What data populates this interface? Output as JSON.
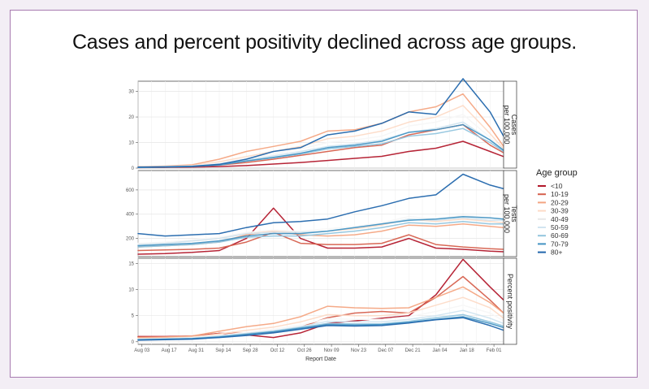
{
  "slide": {
    "title": "Cases and percent positivity declined across age groups."
  },
  "chart_data": {
    "type": "line",
    "xlabel": "Report Date",
    "x_ticks": [
      "Aug 03",
      "Aug 17",
      "Aug 31",
      "Sep 14",
      "Sep 28",
      "Oct 12",
      "Oct 26",
      "Nov 09",
      "Nov 23",
      "Dec 07",
      "Dec 21",
      "Jan 04",
      "Jan 18",
      "Feb 01"
    ],
    "x_dates": [
      "2020-08-01",
      "2020-08-15",
      "2020-08-29",
      "2020-09-12",
      "2020-09-26",
      "2020-10-10",
      "2020-10-24",
      "2020-11-07",
      "2020-11-21",
      "2020-12-05",
      "2020-12-19",
      "2021-01-02",
      "2021-01-16",
      "2021-01-30",
      "2021-02-06"
    ],
    "legend": {
      "title": "Age group",
      "position": "right",
      "entries": [
        "<10",
        "10-19",
        "20-29",
        "30-39",
        "40-49",
        "50-59",
        "60-69",
        "70-79",
        "80+"
      ]
    },
    "colors": [
      "#b2182b",
      "#d6604d",
      "#f4a582",
      "#fddbc7",
      "#f7f7f7",
      "#d1e5f0",
      "#92c5de",
      "#4393c3",
      "#2166ac"
    ],
    "panels": [
      {
        "strip_label_lines": [
          "Cases",
          "per 100,000"
        ],
        "ylim": [
          0,
          34
        ],
        "y_ticks": [
          0,
          10,
          20,
          30
        ],
        "series": [
          {
            "name": "<10",
            "values": [
              0.2,
              0.3,
              0.4,
              0.6,
              1.0,
              1.6,
              2.2,
              3.0,
              3.8,
              4.6,
              6.5,
              7.8,
              10.5,
              6.5,
              4.5
            ]
          },
          {
            "name": "10-19",
            "values": [
              0.4,
              0.6,
              0.8,
              1.2,
              2.2,
              3.5,
              5.0,
              6.5,
              8.0,
              9.0,
              13.0,
              15.0,
              17.0,
              9.0,
              6.0
            ]
          },
          {
            "name": "20-29",
            "values": [
              0.5,
              0.8,
              1.3,
              3.5,
              6.5,
              8.5,
              10.5,
              14.5,
              15.0,
              17.5,
              22.0,
              24.0,
              29.0,
              16.0,
              8.5
            ]
          },
          {
            "name": "30-39",
            "values": [
              0.4,
              0.7,
              1.0,
              2.5,
              4.5,
              6.5,
              8.5,
              11.5,
              12.5,
              14.5,
              18.0,
              20.0,
              24.5,
              13.5,
              7.5
            ]
          },
          {
            "name": "40-49",
            "values": [
              0.4,
              0.6,
              0.9,
              2.0,
              3.8,
              5.5,
              7.5,
              10.0,
              11.0,
              12.5,
              16.5,
              18.0,
              21.0,
              12.0,
              7.0
            ]
          },
          {
            "name": "50-59",
            "values": [
              0.3,
              0.5,
              0.8,
              1.6,
              3.2,
              4.8,
              6.5,
              8.5,
              9.5,
              11.0,
              14.0,
              15.5,
              18.0,
              11.0,
              6.5
            ]
          },
          {
            "name": "60-69",
            "values": [
              0.3,
              0.4,
              0.7,
              1.3,
              2.8,
              4.0,
              5.5,
              7.5,
              8.5,
              9.5,
              12.5,
              13.5,
              15.5,
              10.0,
              6.5
            ]
          },
          {
            "name": "70-79",
            "values": [
              0.3,
              0.4,
              0.6,
              1.2,
              2.8,
              4.2,
              5.8,
              8.0,
              9.0,
              10.5,
              14.0,
              15.0,
              17.0,
              11.0,
              7.0
            ]
          },
          {
            "name": "80+",
            "values": [
              0.4,
              0.5,
              0.7,
              1.5,
              3.5,
              6.5,
              8.0,
              13.0,
              14.5,
              17.5,
              22.0,
              21.0,
              35.0,
              22.0,
              12.5
            ]
          }
        ]
      },
      {
        "strip_label_lines": [
          "Tests",
          "per 100,000"
        ],
        "ylim": [
          50,
          760
        ],
        "y_ticks": [
          200,
          400,
          600
        ],
        "series": [
          {
            "name": "<10",
            "values": [
              70,
              75,
              85,
              100,
              200,
              450,
              200,
              120,
              120,
              130,
              200,
              120,
              110,
              95,
              90
            ]
          },
          {
            "name": "10-19",
            "values": [
              100,
              105,
              110,
              120,
              170,
              250,
              160,
              150,
              150,
              160,
              230,
              150,
              130,
              115,
              110
            ]
          },
          {
            "name": "20-29",
            "values": [
              130,
              140,
              150,
              170,
              230,
              260,
              230,
              220,
              230,
              260,
              310,
              300,
              320,
              300,
              290
            ]
          },
          {
            "name": "30-39",
            "values": [
              150,
              160,
              180,
              200,
              240,
              260,
              250,
              260,
              280,
              310,
              360,
              340,
              360,
              340,
              330
            ]
          },
          {
            "name": "40-49",
            "values": [
              160,
              170,
              190,
              210,
              250,
              270,
              260,
              280,
              300,
              330,
              380,
              360,
              390,
              370,
              360
            ]
          },
          {
            "name": "50-59",
            "values": [
              150,
              160,
              180,
              200,
              240,
              250,
              250,
              260,
              290,
              320,
              360,
              350,
              370,
              350,
              350
            ]
          },
          {
            "name": "60-69",
            "values": [
              130,
              140,
              150,
              170,
              210,
              220,
              220,
              240,
              260,
              290,
              330,
              320,
              340,
              320,
              320
            ]
          },
          {
            "name": "70-79",
            "values": [
              140,
              150,
              160,
              180,
              220,
              240,
              240,
              260,
              290,
              320,
              350,
              360,
              380,
              370,
              360
            ]
          },
          {
            "name": "80+",
            "values": [
              240,
              220,
              230,
              240,
              290,
              330,
              340,
              360,
              420,
              470,
              530,
              560,
              730,
              640,
              610
            ]
          }
        ]
      },
      {
        "strip_label_lines": [
          "Percent positivity"
        ],
        "ylim": [
          -0.5,
          16
        ],
        "y_ticks": [
          0,
          5,
          10,
          15
        ],
        "series": [
          {
            "name": "<10",
            "values": [
              1.0,
              1.0,
              1.1,
              1.6,
              1.3,
              0.8,
              1.7,
              3.5,
              4.0,
              4.5,
              5.0,
              9.0,
              15.8,
              10.5,
              8.0
            ]
          },
          {
            "name": "10-19",
            "values": [
              0.9,
              0.9,
              1.0,
              1.6,
              1.7,
              1.8,
              2.8,
              4.6,
              5.5,
              5.8,
              5.5,
              8.5,
              12.5,
              8.0,
              5.5
            ]
          },
          {
            "name": "20-29",
            "values": [
              0.8,
              0.9,
              1.1,
              2.0,
              2.9,
              3.5,
              4.8,
              6.8,
              6.5,
              6.4,
              6.5,
              8.5,
              10.5,
              7.5,
              5.5
            ]
          },
          {
            "name": "30-39",
            "values": [
              0.6,
              0.7,
              0.9,
              1.5,
              2.2,
              2.8,
              3.8,
              5.2,
              5.0,
              5.0,
              5.5,
              7.0,
              8.5,
              6.5,
              4.5
            ]
          },
          {
            "name": "40-49",
            "values": [
              0.5,
              0.6,
              0.8,
              1.2,
              1.8,
              2.4,
              3.2,
              4.4,
              4.3,
              4.3,
              4.8,
              5.8,
              7.0,
              5.5,
              4.0
            ]
          },
          {
            "name": "50-59",
            "values": [
              0.5,
              0.6,
              0.7,
              1.1,
              1.6,
              2.1,
              2.9,
              3.9,
              3.8,
              3.8,
              4.3,
              5.0,
              6.0,
              4.5,
              3.5
            ]
          },
          {
            "name": "60-69",
            "values": [
              0.4,
              0.5,
              0.6,
              1.0,
              1.5,
              2.0,
              2.7,
              3.5,
              3.4,
              3.4,
              3.9,
              4.6,
              5.2,
              3.8,
              3.0
            ]
          },
          {
            "name": "70-79",
            "values": [
              0.4,
              0.5,
              0.6,
              0.9,
              1.4,
              1.9,
              2.6,
              3.3,
              3.2,
              3.3,
              3.7,
              4.3,
              4.8,
              3.5,
              2.7
            ]
          },
          {
            "name": "80+",
            "values": [
              0.3,
              0.4,
              0.5,
              0.8,
              1.2,
              1.7,
              2.4,
              3.1,
              3.0,
              3.1,
              3.6,
              4.2,
              4.6,
              3.1,
              2.2
            ]
          }
        ]
      }
    ]
  }
}
